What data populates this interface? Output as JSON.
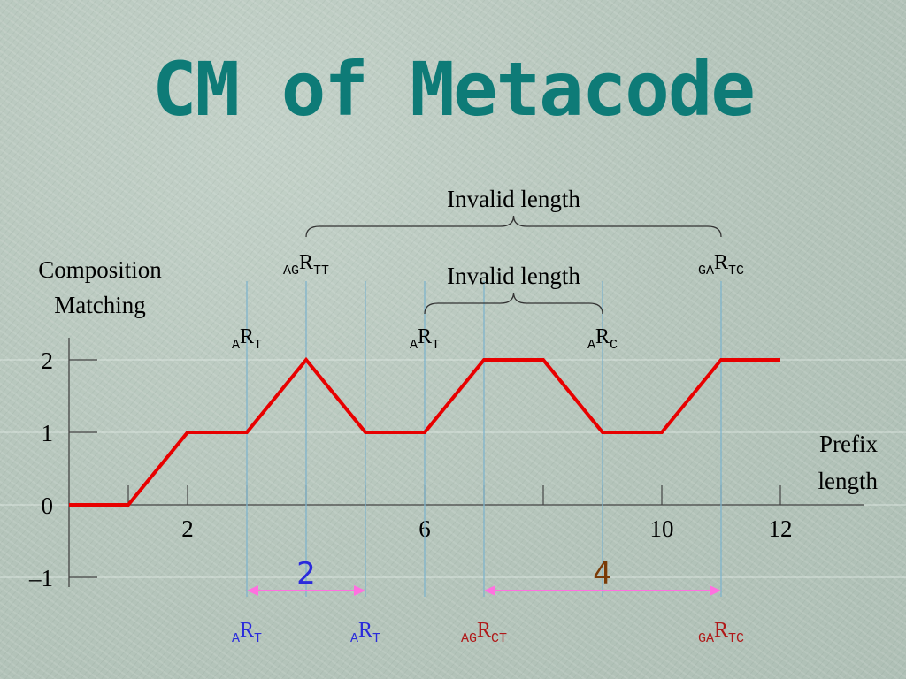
{
  "title": "CM of Metacode",
  "colors": {
    "title": "#0e7b77",
    "curve": "#e80000",
    "marker": "#7fb4cc",
    "arrow": "#ff70e0",
    "blue_label": "#2a2adc",
    "red_label": "#b01818",
    "brown_label": "#7a3a06"
  },
  "chart_data": {
    "type": "line",
    "ylabel": "Composition Matching",
    "xlabel": "Prefix length",
    "x_ticks": [
      2,
      6,
      10,
      12
    ],
    "y_ticks": [
      2,
      1,
      0,
      -1
    ],
    "y_tick_labels": [
      "2",
      "1",
      "0",
      "–1"
    ],
    "xlim": [
      -2,
      14
    ],
    "ylim": [
      -1,
      2
    ],
    "series": [
      {
        "x": [
          0,
          1,
          2,
          3,
          4,
          5,
          6,
          7,
          8,
          9,
          10,
          11,
          12
        ],
        "y": [
          0,
          0,
          1,
          1,
          2,
          1,
          1,
          2,
          2,
          1,
          1,
          2,
          2
        ]
      }
    ],
    "markers": [
      3,
      4,
      5,
      6,
      7,
      9,
      11
    ],
    "top_labels": [
      {
        "x": 3,
        "pre": "A",
        "main": "R",
        "sub": "T"
      },
      {
        "x": 4,
        "pre": "AG",
        "main": "R",
        "sub": "TT"
      },
      {
        "x": 6,
        "pre": "A",
        "main": "R",
        "sub": "T"
      },
      {
        "x": 9,
        "pre": "A",
        "main": "R",
        "sub": "C"
      },
      {
        "x": 11,
        "pre": "GA",
        "main": "R",
        "sub": "TC"
      }
    ],
    "bottom_labels": [
      {
        "x": 3,
        "pre": "A",
        "main": "R",
        "sub": "T",
        "color": "blue"
      },
      {
        "x": 5,
        "pre": "A",
        "main": "R",
        "sub": "T",
        "color": "blue"
      },
      {
        "x": 7,
        "pre": "AG",
        "main": "R",
        "sub": "CT",
        "color": "red"
      },
      {
        "x": 11,
        "pre": "GA",
        "main": "R",
        "sub": "TC",
        "color": "red"
      }
    ],
    "braces": [
      {
        "from": 4,
        "to": 11,
        "label": "Invalid length"
      },
      {
        "from": 6,
        "to": 9,
        "label": "Invalid length"
      }
    ],
    "intervals": [
      {
        "from": 3,
        "to": 5,
        "label": "2",
        "color": "blue"
      },
      {
        "from": 7,
        "to": 11,
        "label": "4",
        "color": "brown"
      }
    ]
  }
}
